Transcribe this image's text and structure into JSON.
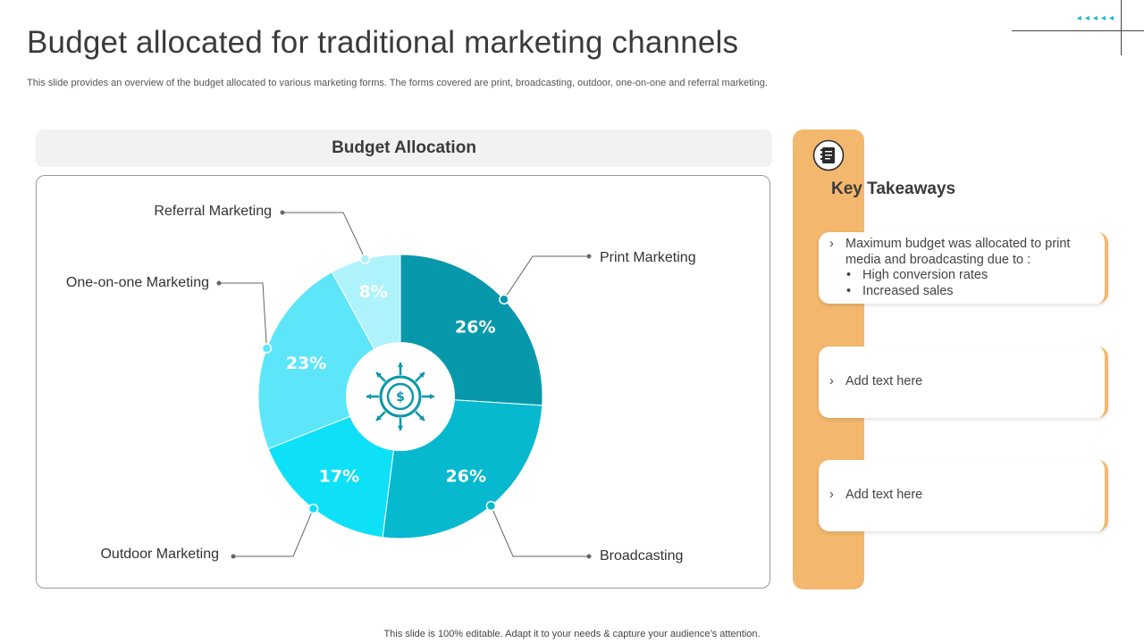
{
  "slide": {
    "title": "Budget allocated for traditional marketing channels",
    "subtitle": "This slide provides an overview of the budget allocated to various marketing forms. The forms covered are print, broadcasting, outdoor, one-on-one and referral marketing.",
    "footer": "This slide is 100% editable. Adapt it to your needs & capture your audience’s attention.",
    "corner_arrows": "◂◂◂◂◂"
  },
  "panel": {
    "header": "Budget Allocation"
  },
  "chart_data": {
    "type": "pie",
    "title": "Budget Allocation",
    "categories": [
      "Print Marketing",
      "Broadcasting",
      "Outdoor Marketing",
      "One-on-one Marketing",
      "Referral Marketing"
    ],
    "values": [
      26,
      26,
      17,
      23,
      8
    ],
    "value_labels": [
      "26%",
      "26%",
      "17%",
      "23%",
      "8%"
    ],
    "colors": [
      "#0799ab",
      "#06b9cf",
      "#0ee1f7",
      "#5de6fa",
      "#aef2fc"
    ],
    "center_icon": "dollar-arrows-icon",
    "donut": true
  },
  "takeaways": {
    "title": "Key Takeaways",
    "icon": "notebook-icon",
    "chevron": "›",
    "cards": [
      {
        "text": "Maximum budget was allocated to print media and broadcasting due to :",
        "bullets": [
          "High conversion rates",
          "Increased sales"
        ]
      },
      {
        "text": "Add text here"
      },
      {
        "text": "Add text here"
      }
    ]
  }
}
